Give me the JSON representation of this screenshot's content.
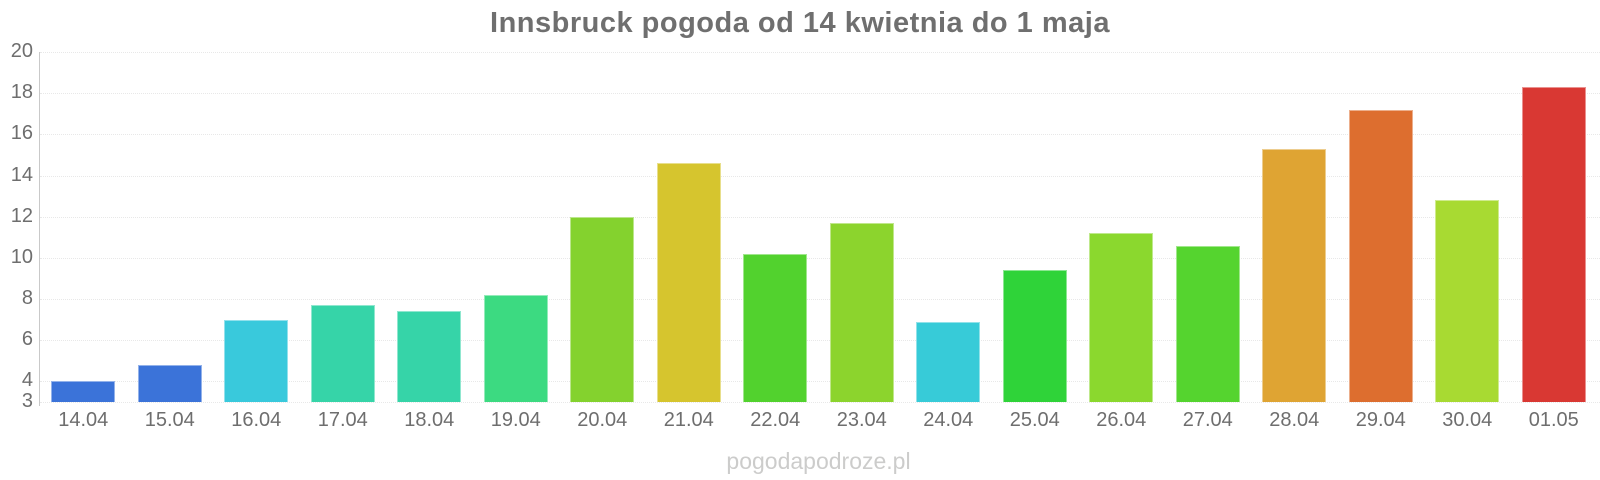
{
  "watermark": "pogodapodroze.pl",
  "colors": {
    "background": "#ffffff",
    "title": "#6f6f6f",
    "axis_label": "#6e6e6e",
    "grid_line": "#e8e8e8",
    "axis_line": "#c9c9c9",
    "watermark": "#cccccb"
  },
  "chart_data": {
    "type": "bar",
    "title": "Innsbruck pogoda od 14 kwietnia do 1 maja",
    "categories": [
      "14.04",
      "15.04",
      "16.04",
      "17.04",
      "18.04",
      "19.04",
      "20.04",
      "21.04",
      "22.04",
      "23.04",
      "24.04",
      "25.04",
      "26.04",
      "27.04",
      "28.04",
      "29.04",
      "30.04",
      "01.05"
    ],
    "values": [
      4.0,
      4.8,
      7.0,
      7.7,
      7.4,
      8.2,
      12.0,
      14.6,
      10.2,
      11.7,
      6.9,
      9.4,
      11.2,
      10.6,
      15.3,
      17.2,
      12.8,
      18.3
    ],
    "bar_colors": [
      "#3b73d9",
      "#3b73d9",
      "#39c9dc",
      "#36d4a8",
      "#36d4a8",
      "#3cda81",
      "#84d22e",
      "#d6c52e",
      "#52d22e",
      "#8cd42d",
      "#37cbd8",
      "#2fd339",
      "#8bd82e",
      "#55d42f",
      "#dfa433",
      "#dd6e2f",
      "#a8da32",
      "#d93833"
    ],
    "xlabel": "",
    "ylabel": "",
    "ylim": [
      3,
      20
    ],
    "yticks": [
      3,
      4,
      6,
      8,
      10,
      12,
      14,
      16,
      18,
      20
    ],
    "grid": true,
    "legend": false
  }
}
